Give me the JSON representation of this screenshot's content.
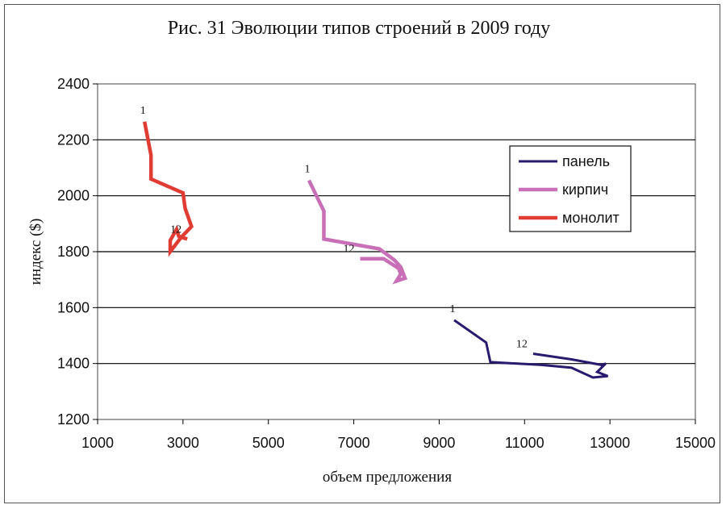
{
  "chart_data": {
    "type": "line",
    "title": "Рис. 31 Эволюции типов строений в 2009 году",
    "xlabel": "объем предложения",
    "ylabel": "индекс ($)",
    "xlim": [
      1000,
      15000
    ],
    "ylim": [
      1200,
      2400
    ],
    "xticks": [
      1000,
      3000,
      5000,
      7000,
      9000,
      11000,
      13000,
      15000
    ],
    "yticks": [
      1200,
      1400,
      1600,
      1800,
      2000,
      2200,
      2400
    ],
    "xtick_labels": [
      "1000",
      "3000",
      "5000",
      "7000",
      "9000",
      "11000",
      "13000",
      "15000"
    ],
    "ytick_labels": [
      "1200",
      "1400",
      "1600",
      "1800",
      "2000",
      "2200",
      "2400"
    ],
    "grid": "horizontal",
    "legend_position": "right",
    "series": [
      {
        "name": "панель",
        "color": "#2a1a6e",
        "points": [
          [
            9350,
            1555
          ],
          [
            10100,
            1475
          ],
          [
            10200,
            1405
          ],
          [
            11400,
            1395
          ],
          [
            12100,
            1385
          ],
          [
            12600,
            1350
          ],
          [
            12950,
            1355
          ],
          [
            12700,
            1370
          ],
          [
            12900,
            1400
          ],
          [
            12800,
            1395
          ],
          [
            12100,
            1415
          ],
          [
            11200,
            1435
          ]
        ],
        "start_label": "1",
        "end_label": "12"
      },
      {
        "name": "кирпич",
        "color": "#c86fb8",
        "points": [
          [
            5950,
            2055
          ],
          [
            6300,
            1945
          ],
          [
            6300,
            1845
          ],
          [
            7600,
            1810
          ],
          [
            7950,
            1770
          ],
          [
            8100,
            1745
          ],
          [
            8200,
            1705
          ],
          [
            8000,
            1695
          ],
          [
            8100,
            1720
          ],
          [
            8050,
            1740
          ],
          [
            7700,
            1775
          ],
          [
            7150,
            1775
          ]
        ],
        "start_label": "1",
        "end_label": "12"
      },
      {
        "name": "монолит",
        "color": "#e03c34",
        "points": [
          [
            2100,
            2265
          ],
          [
            2250,
            2145
          ],
          [
            2250,
            2060
          ],
          [
            3000,
            2010
          ],
          [
            3050,
            1955
          ],
          [
            3200,
            1890
          ],
          [
            2950,
            1850
          ],
          [
            2700,
            1800
          ],
          [
            2700,
            1840
          ],
          [
            2850,
            1880
          ],
          [
            2900,
            1855
          ],
          [
            3100,
            1845
          ]
        ],
        "start_label": "1",
        "end_label": "12"
      }
    ]
  }
}
